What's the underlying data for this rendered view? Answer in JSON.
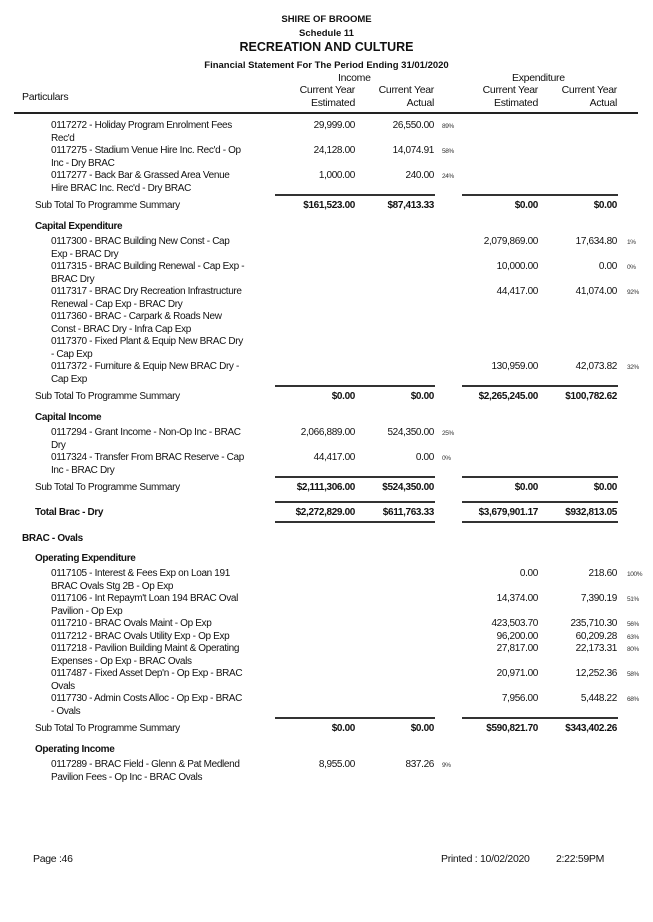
{
  "header": {
    "org": "SHIRE OF BROOME",
    "schedule": "Schedule 11",
    "title": "RECREATION AND CULTURE",
    "subtitle": "Financial Statement For The Period Ending 31/01/2020"
  },
  "columns": {
    "particulars": "Particulars",
    "income": "Income",
    "expenditure": "Expenditure",
    "current_year": "Current Year",
    "estimated": "Estimated",
    "actual": "Actual"
  },
  "rows": [
    {
      "type": "item",
      "desc": "0117272 - Holiday Program Enrolment Fees Rec'd",
      "inc_est": "29,999.00",
      "inc_act": "26,550.00",
      "inc_pct": "89%"
    },
    {
      "type": "item",
      "desc": "0117275 - Stadium Venue Hire Inc. Rec'd - Op Inc - Dry BRAC",
      "inc_est": "24,128.00",
      "inc_act": "14,074.91",
      "inc_pct": "58%"
    },
    {
      "type": "item",
      "desc": "0117277 - Back Bar & Grassed Area Venue Hire BRAC Inc. Rec'd - Dry BRAC",
      "inc_est": "1,000.00",
      "inc_act": "240.00",
      "inc_pct": "24%"
    },
    {
      "type": "sub",
      "desc": "Sub Total To Programme Summary",
      "inc_est": "$161,523.00",
      "inc_act": "$87,413.33",
      "exp_est": "$0.00",
      "exp_act": "$0.00"
    },
    {
      "type": "head",
      "desc": "Capital Expenditure"
    },
    {
      "type": "item",
      "desc": "0117300 - BRAC Building New Const - Cap Exp - BRAC Dry",
      "exp_est": "2,079,869.00",
      "exp_act": "17,634.80",
      "exp_pct": "1%"
    },
    {
      "type": "item",
      "desc": "0117315 - BRAC Building Renewal - Cap Exp - BRAC Dry",
      "exp_est": "10,000.00",
      "exp_act": "0.00",
      "exp_pct": "0%"
    },
    {
      "type": "item",
      "desc": "0117317 - BRAC Dry Recreation Infrastructure Renewal - Cap Exp - BRAC Dry",
      "exp_est": "44,417.00",
      "exp_act": "41,074.00",
      "exp_pct": "92%"
    },
    {
      "type": "item",
      "desc": "0117360 - BRAC - Carpark & Roads New Const - BRAC Dry - Infra Cap Exp"
    },
    {
      "type": "item",
      "desc": "0117370 - Fixed Plant & Equip New  BRAC Dry - Cap Exp"
    },
    {
      "type": "item",
      "desc": "0117372 - Furniture & Equip New  BRAC Dry - Cap Exp",
      "exp_est": "130,959.00",
      "exp_act": "42,073.82",
      "exp_pct": "32%"
    },
    {
      "type": "sub",
      "desc": "Sub Total To Programme Summary",
      "inc_est": "$0.00",
      "inc_act": "$0.00",
      "exp_est": "$2,265,245.00",
      "exp_act": "$100,782.62"
    },
    {
      "type": "head",
      "desc": "Capital Income"
    },
    {
      "type": "item",
      "desc": "0117294 - Grant  Income - Non-Op Inc - BRAC Dry",
      "inc_est": "2,066,889.00",
      "inc_act": "524,350.00",
      "inc_pct": "25%"
    },
    {
      "type": "item",
      "desc": "0117324 - Transfer From BRAC Reserve  - Cap Inc - BRAC Dry",
      "inc_est": "44,417.00",
      "inc_act": "0.00",
      "inc_pct": "0%"
    },
    {
      "type": "sub",
      "desc": "Sub Total To Programme Summary",
      "inc_est": "$2,111,306.00",
      "inc_act": "$524,350.00",
      "exp_est": "$0.00",
      "exp_act": "$0.00"
    },
    {
      "type": "tot",
      "desc": "Total Brac - Dry",
      "inc_est": "$2,272,829.00",
      "inc_act": "$611,763.33",
      "exp_est": "$3,679,901.17",
      "exp_act": "$932,813.05"
    },
    {
      "type": "sect",
      "desc": "BRAC - Ovals"
    },
    {
      "type": "head",
      "desc": "Operating Expenditure"
    },
    {
      "type": "item",
      "desc": "0117105 - Interest & Fees Exp on Loan 191 BRAC Ovals Stg 2B  - Op Exp",
      "exp_est": "0.00",
      "exp_act": "218.60",
      "exp_pct": "100%"
    },
    {
      "type": "item",
      "desc": "0117106 - Int Repaym't Loan 194 BRAC Oval Pavilion  - Op Exp",
      "exp_est": "14,374.00",
      "exp_act": "7,390.19",
      "exp_pct": "51%"
    },
    {
      "type": "item",
      "desc": "0117210 - BRAC Ovals Maint - Op Exp",
      "exp_est": "423,503.70",
      "exp_act": "235,710.30",
      "exp_pct": "56%"
    },
    {
      "type": "item",
      "desc": "0117212 - BRAC Ovals Utility Exp - Op Exp",
      "exp_est": "96,200.00",
      "exp_act": "60,209.28",
      "exp_pct": "63%"
    },
    {
      "type": "item",
      "desc": "0117218 - Pavilion Building Maint & Operating Expenses - Op Exp -  BRAC Ovals",
      "exp_est": "27,817.00",
      "exp_act": "22,173.31",
      "exp_pct": "80%"
    },
    {
      "type": "item",
      "desc": "0117487 - Fixed Asset Dep'n - Op Exp - BRAC Ovals",
      "exp_est": "20,971.00",
      "exp_act": "12,252.36",
      "exp_pct": "58%"
    },
    {
      "type": "item",
      "desc": "0117730 - Admin Costs Alloc - Op Exp - BRAC - Ovals",
      "exp_est": "7,956.00",
      "exp_act": "5,448.22",
      "exp_pct": "68%"
    },
    {
      "type": "sub",
      "desc": "Sub Total To Programme Summary",
      "inc_est": "$0.00",
      "inc_act": "$0.00",
      "exp_est": "$590,821.70",
      "exp_act": "$343,402.26"
    },
    {
      "type": "head",
      "desc": "Operating Income"
    },
    {
      "type": "item",
      "desc": "0117289 - BRAC Field - Glenn & Pat Medlend Pavilion Fees - Op Inc - BRAC Ovals",
      "inc_est": "8,955.00",
      "inc_act": "837.26",
      "inc_pct": "9%"
    }
  ],
  "footer": {
    "page": "Page :46",
    "printed": "Printed :  10/02/2020",
    "time": "2:22:59PM"
  }
}
